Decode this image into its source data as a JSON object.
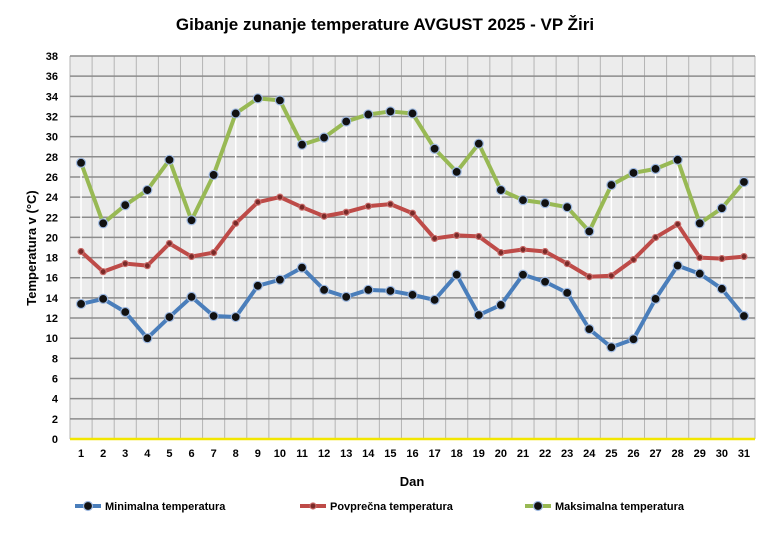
{
  "chart_data": {
    "type": "line",
    "title": "Gibanje zunanje temperature AVGUST 2025 - VP Žiri",
    "xlabel": "Dan",
    "ylabel": "Temperatura v (°C)",
    "ylim": [
      0,
      38
    ],
    "yticks": [
      0,
      2,
      4,
      6,
      8,
      10,
      12,
      14,
      16,
      18,
      20,
      22,
      24,
      26,
      28,
      30,
      32,
      34,
      36,
      38
    ],
    "categories": [
      "1",
      "2",
      "3",
      "4",
      "5",
      "6",
      "7",
      "8",
      "9",
      "10",
      "11",
      "12",
      "13",
      "14",
      "15",
      "16",
      "17",
      "18",
      "19",
      "20",
      "21",
      "22",
      "23",
      "24",
      "25",
      "26",
      "27",
      "28",
      "29",
      "30",
      "31"
    ],
    "grid": true,
    "legend_position": "bottom",
    "series": [
      {
        "name": "Minimalna temperatura",
        "color": "#4a7ebb",
        "values": [
          13.4,
          13.9,
          12.6,
          10.0,
          12.1,
          14.1,
          12.2,
          12.1,
          15.2,
          15.8,
          17.0,
          14.8,
          14.1,
          14.8,
          14.7,
          14.3,
          13.8,
          16.3,
          12.3,
          13.3,
          16.3,
          15.6,
          14.5,
          10.9,
          9.1,
          9.9,
          13.9,
          17.2,
          16.4,
          14.9,
          12.2
        ]
      },
      {
        "name": "Povprečna temperatura",
        "color": "#be4b48",
        "values": [
          18.6,
          16.6,
          17.4,
          17.2,
          19.4,
          18.1,
          18.5,
          21.4,
          23.5,
          24.0,
          23.0,
          22.1,
          22.5,
          23.1,
          23.3,
          22.4,
          19.9,
          20.2,
          20.1,
          18.5,
          18.8,
          18.6,
          17.4,
          16.1,
          16.2,
          17.8,
          20.0,
          21.3,
          18.0,
          17.9,
          18.1
        ]
      },
      {
        "name": "Maksimalna temperatura",
        "color": "#98b954",
        "values": [
          27.4,
          21.4,
          23.2,
          24.7,
          27.7,
          21.7,
          26.2,
          32.3,
          33.8,
          33.6,
          29.2,
          29.9,
          31.5,
          32.2,
          32.5,
          32.3,
          28.8,
          26.5,
          29.3,
          24.7,
          23.7,
          23.4,
          23.0,
          20.6,
          25.2,
          26.4,
          26.8,
          27.7,
          21.4,
          22.9,
          25.5
        ]
      }
    ]
  }
}
